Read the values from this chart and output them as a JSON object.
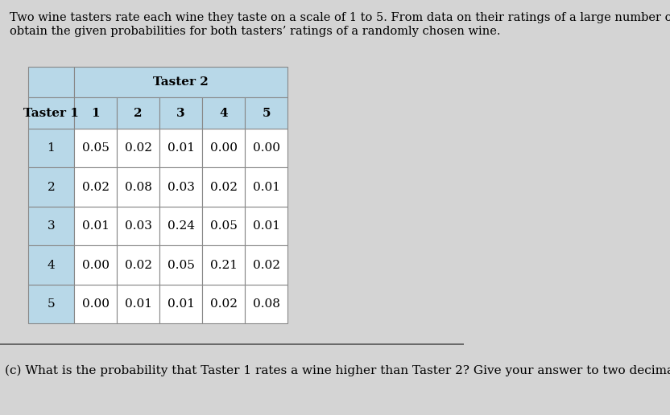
{
  "title_text": "Two wine tasters rate each wine they taste on a scale of 1 to 5. From data on their ratings of a large number of wines, we\nobtain the given probabilities for both tasters’ ratings of a randomly chosen wine.",
  "taster2_label": "Taster 2",
  "taster1_label": "Taster 1",
  "col_headers": [
    "1",
    "2",
    "3",
    "4",
    "5"
  ],
  "row_headers": [
    "1",
    "2",
    "3",
    "4",
    "5"
  ],
  "table_data": [
    [
      0.05,
      0.02,
      0.01,
      0.0,
      0.0
    ],
    [
      0.02,
      0.08,
      0.03,
      0.02,
      0.01
    ],
    [
      0.01,
      0.03,
      0.24,
      0.05,
      0.01
    ],
    [
      0.0,
      0.02,
      0.05,
      0.21,
      0.02
    ],
    [
      0.0,
      0.01,
      0.01,
      0.02,
      0.08
    ]
  ],
  "question_text": "(c) What is the probability that Taster 1 rates a wine higher than Taster 2? Give your answer to two decimal places.",
  "page_bg": "#d4d4d4",
  "table_header_bg": "#b8d8e8",
  "table_cell_bg": "#ffffff",
  "table_border_color": "#888888",
  "title_fontsize": 10.5,
  "question_fontsize": 11,
  "header_fontsize": 11,
  "cell_fontsize": 11
}
